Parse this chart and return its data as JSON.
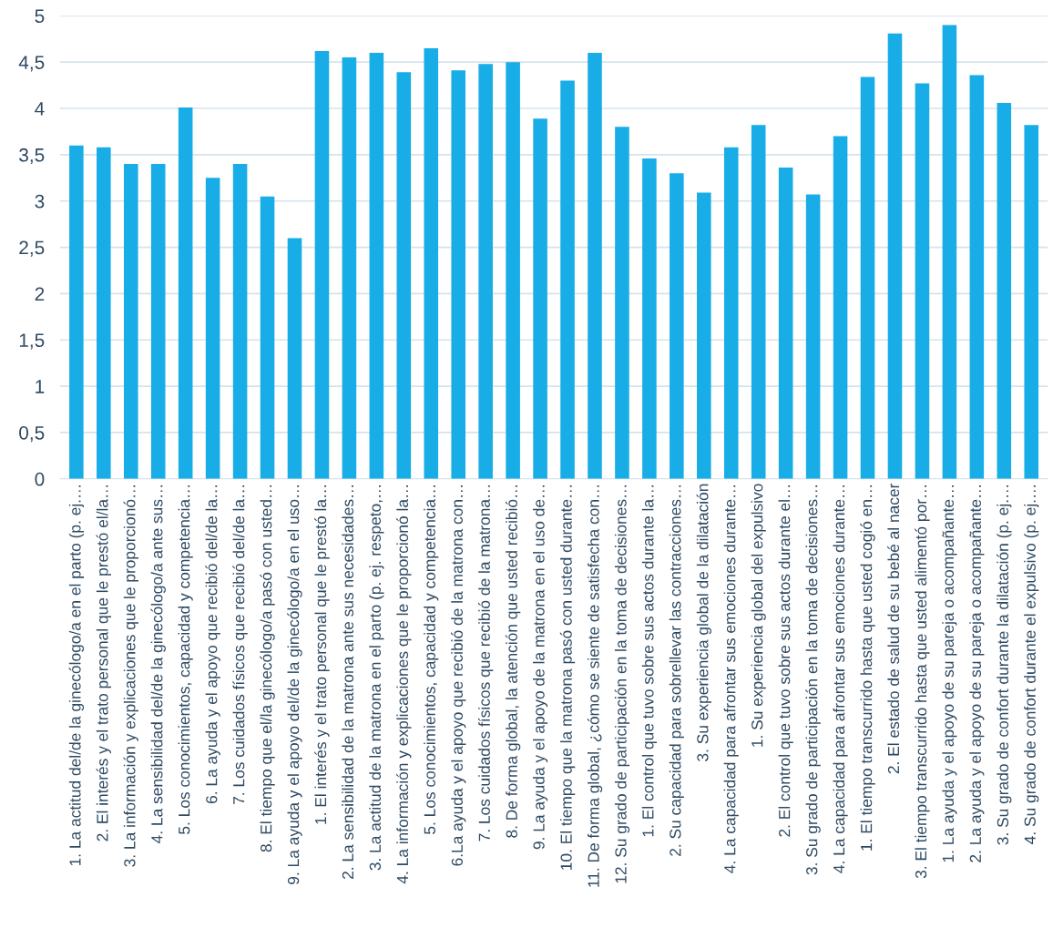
{
  "chart_data": {
    "type": "bar",
    "categories": [
      "1. La actitud del/de la ginecólogo/a en el parto (p. ej.…",
      "2. El interés y el trato personal que le prestó el/la…",
      "3. La información y explicaciones que le proporcionó…",
      "4. La sensibilidad del/de la ginecólogo/a ante sus…",
      "5. Los conocimientos, capacidad y competencia…",
      "6. La ayuda y el apoyo que recibió del/de la…",
      "7. Los cuidados físicos que recibió del/de la…",
      "8. El tiempo que el/la ginecólogo/a pasó con usted…",
      "9. La ayuda y el apoyo del/de la ginecólogo/a en el uso…",
      "1. El interés y el trato personal que le prestó la…",
      "2. La sensibilidad de la matrona ante sus necesidades…",
      "3. La actitud de la matrona en el parto (p. ej. respeto,…",
      "4. La información y explicaciones que le proporcionó la…",
      "5. Los conocimientos, capacidad y competencia…",
      "6.La ayuda y el apoyo que recibió de la matrona con…",
      "7. Los cuidados físicos que recibió de la matrona…",
      "8. De forma global, la atención que usted recibió…",
      "9. La ayuda y el apoyo de la matrona en el uso de…",
      "10. El tiempo que la matrona pasó con usted durante…",
      "11. De forma global, ¿cómo se siente de satisfecha con…",
      "12. Su grado de participación en la toma de decisiones…",
      "1. El control que tuvo sobre sus actos durante la…",
      "2. Su capacidad para sobrellevar las contracciones…",
      "3. Su experiencia global de la dilatación",
      "4. La capacidad para afrontar sus emociones durante…",
      "1. Su experiencia global del expulsivo",
      "2. El control que tuvo sobre sus actos durante el…",
      "3. Su grado de participación en la toma de decisiones…",
      "4. La capacidad para afrontar sus emociones durante…",
      "1. El tiempo transcurrido hasta que usted cogió en…",
      "2. El estado de salud de su bebé al nacer",
      "3. El tiempo transcurrido hasta que usted alimentó por…",
      "1. La ayuda y el apoyo de su pareja o acompañante…",
      "2. La ayuda y el apoyo de su pareja o acompañante…",
      "3. Su grado de confort durante la dilatación (p. ej.…",
      "4. Su grado de confort durante el expulsivo (p. ej.…"
    ],
    "values": [
      3.6,
      3.58,
      3.4,
      3.4,
      4.01,
      3.25,
      3.4,
      3.05,
      2.6,
      4.62,
      4.55,
      4.6,
      4.39,
      4.65,
      4.41,
      4.48,
      4.5,
      3.89,
      4.3,
      4.6,
      3.8,
      3.46,
      3.3,
      3.09,
      3.58,
      3.82,
      3.36,
      3.07,
      3.7,
      4.34,
      4.81,
      4.27,
      4.9,
      4.36,
      4.06,
      3.82
    ],
    "color": "#18ade7",
    "ylim": [
      0,
      5
    ],
    "yticks": [
      {
        "value": 0,
        "label": "0"
      },
      {
        "value": 0.5,
        "label": "0,5"
      },
      {
        "value": 1,
        "label": "1"
      },
      {
        "value": 1.5,
        "label": "1,5"
      },
      {
        "value": 2,
        "label": "2"
      },
      {
        "value": 2.5,
        "label": "2,5"
      },
      {
        "value": 3,
        "label": "3"
      },
      {
        "value": 3.5,
        "label": "3,5"
      },
      {
        "value": 4,
        "label": "4"
      },
      {
        "value": 4.5,
        "label": "4,5"
      },
      {
        "value": 5,
        "label": "5"
      }
    ],
    "grid": "y"
  }
}
